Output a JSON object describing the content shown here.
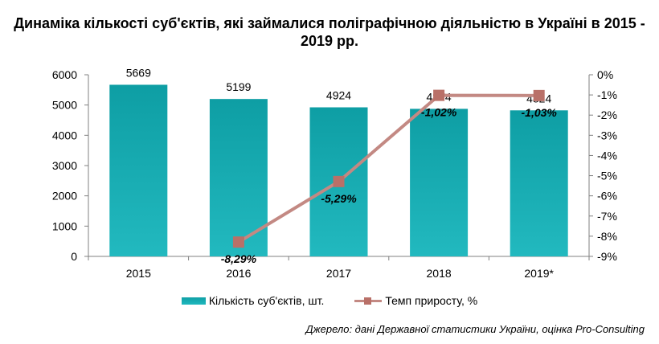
{
  "title": "Динаміка кількості суб'єктів, які займалися поліграфічною діяльністю в Україні в 2015 - 2019 рр.",
  "source": "Джерело: дані Державної статистики України, оцінка Pro-Consulting",
  "colors": {
    "bar": "#1aaeb4",
    "line": "#c38983",
    "marker": "#b97068"
  },
  "chart_data": {
    "type": "bar+line",
    "categories": [
      "2015",
      "2016",
      "2017",
      "2018",
      "2019*"
    ],
    "series": [
      {
        "name": "Кількість суб'єктів, шт.",
        "type": "bar",
        "axis": "left",
        "values": [
          5669,
          5199,
          4924,
          4874,
          4824
        ],
        "labels": [
          "5669",
          "5199",
          "4924",
          "4874",
          "4824"
        ]
      },
      {
        "name": "Темп приросту, %",
        "type": "line",
        "axis": "right",
        "values": [
          null,
          -8.29,
          -5.29,
          -1.02,
          -1.03
        ],
        "labels": [
          "",
          "-8,29%",
          "-5,29%",
          "-1,02%",
          "-1,03%"
        ]
      }
    ],
    "y_left": {
      "min": 0,
      "max": 6000,
      "ticks": [
        "0",
        "1000",
        "2000",
        "3000",
        "4000",
        "5000",
        "6000"
      ]
    },
    "y_right": {
      "min": -9,
      "max": 0,
      "ticks": [
        "0%",
        "-1%",
        "-2%",
        "-3%",
        "-4%",
        "-5%",
        "-6%",
        "-7%",
        "-8%",
        "-9%"
      ]
    },
    "grid": false,
    "legend": "bottom"
  }
}
